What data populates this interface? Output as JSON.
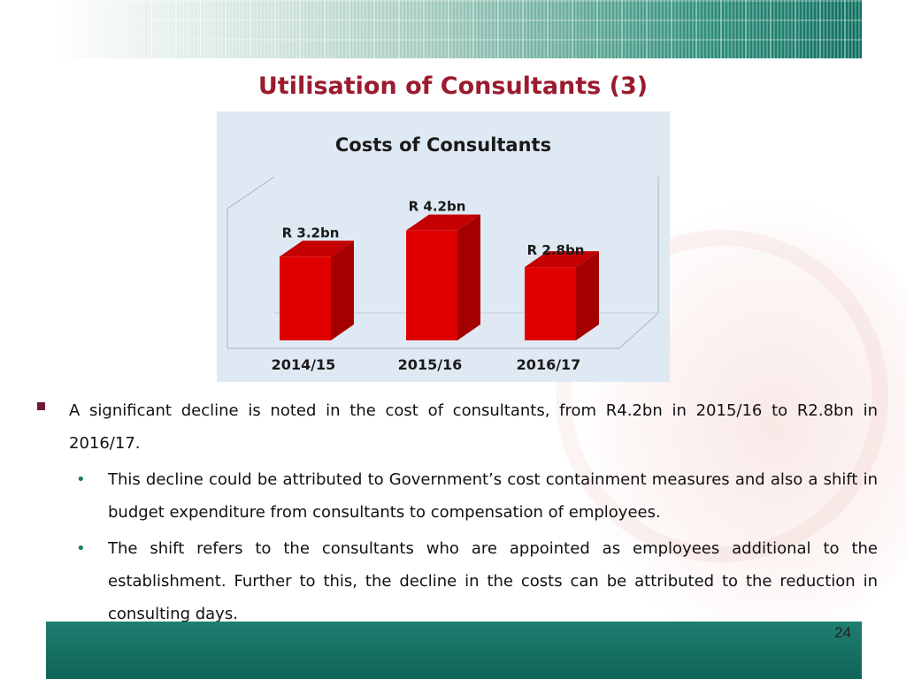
{
  "slide": {
    "title": "Utilisation of Consultants (3)",
    "page_number": "24"
  },
  "chart_data": {
    "type": "bar",
    "title": "Costs of Consultants",
    "categories": [
      "2014/15",
      "2015/16",
      "2016/17"
    ],
    "values": [
      3.2,
      4.2,
      2.8
    ],
    "value_labels": [
      "R 3.2bn",
      "R 4.2bn",
      "R 2.8bn"
    ],
    "unit": "R bn",
    "ylim": [
      0,
      5
    ],
    "style": "3d-column",
    "bar_color": "#e00000",
    "bar_side_color": "#a40000",
    "grid": false,
    "legend": "none"
  },
  "bullets": {
    "main": "A significant decline is noted in the cost of consultants, from R4.2bn in 2015/16 to R2.8bn in 2016/17.",
    "sub": [
      "This decline could be attributed to Government’s cost containment measures and also a shift in budget expenditure from consultants to compensation of employees.",
      "The shift refers to the consultants who are appointed as employees additional to the establishment. Further to this, the decline in the costs can be attributed to the reduction in consulting days."
    ]
  },
  "colors": {
    "title": "#9b1b2e",
    "bullet_square": "#6b1a3a",
    "footer_band": "#0e6357",
    "chart_background": "#dfe9f3"
  }
}
